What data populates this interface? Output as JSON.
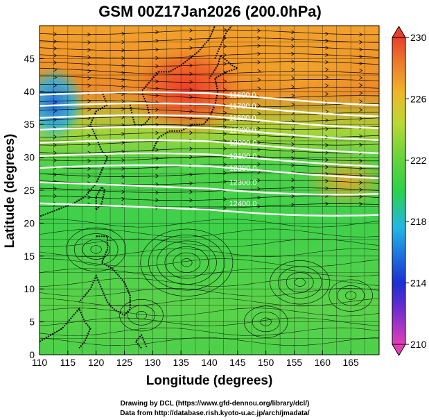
{
  "title": "GSM 00Z17Jan2026 (200.0hPa)",
  "xlabel": "Longitude (degrees)",
  "ylabel": "Latitude  (degrees)",
  "credits": {
    "drawing": "Drawing by DCL (https://www.gfd-dennou.org/library/dcl/)",
    "data": "Data from http://database.rish.kyoto-u.ac.jp/arch/jmadata/"
  },
  "chart_data": {
    "type": "heatmap",
    "title": "GSM 00Z17Jan2026 (200.0hPa)",
    "xlabel": "Longitude (degrees)",
    "ylabel": "Latitude  (degrees)",
    "xlim": [
      110,
      170
    ],
    "ylim": [
      0,
      50
    ],
    "xticks": [
      "110",
      "115",
      "120",
      "125",
      "130",
      "135",
      "140",
      "145",
      "150",
      "155",
      "160",
      "165"
    ],
    "yticks": [
      "0",
      "5",
      "10",
      "15",
      "20",
      "25",
      "30",
      "35",
      "40",
      "45"
    ],
    "colorbar": {
      "min": 210,
      "max": 230,
      "ticks": [
        "210",
        "214",
        "218",
        "222",
        "226",
        "230"
      ],
      "colors": [
        "#e23fb8",
        "#1a2fd2",
        "#22b7e6",
        "#2bd24a",
        "#9fd63a",
        "#f0b62a",
        "#e8402a"
      ]
    },
    "contours": [
      {
        "label": "11600.0",
        "lat": 39.5
      },
      {
        "label": "11700.0",
        "lat": 37.8
      },
      {
        "label": "11800.0",
        "lat": 36.0
      },
      {
        "label": "11900.0",
        "lat": 34.2
      },
      {
        "label": "12000.0",
        "lat": 32.2
      },
      {
        "label": "12100.0",
        "lat": 30.2
      },
      {
        "label": "12200.0",
        "lat": 28.4
      },
      {
        "label": "12300.0",
        "lat": 26.2
      },
      {
        "label": "12400.0",
        "lat": 23.0
      }
    ],
    "field": "temperature (K) shaded, geopotential height contours, wind streamlines"
  }
}
